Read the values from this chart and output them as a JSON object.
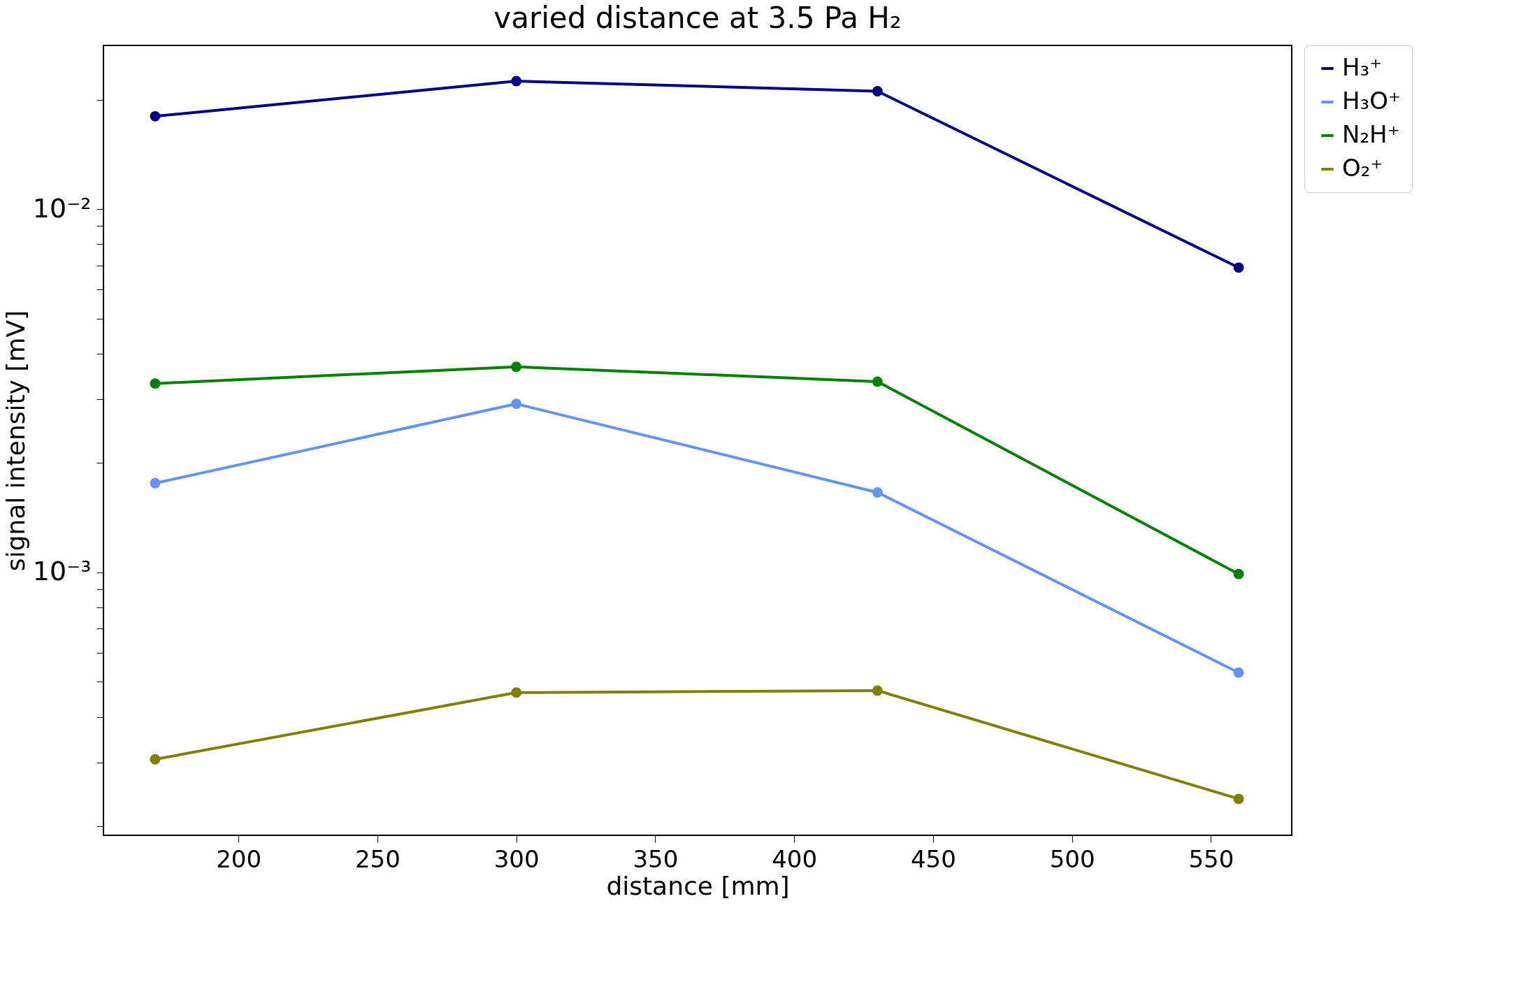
{
  "chart_data": {
    "type": "line",
    "title": "varied distance at 3.5 Pa H₂",
    "xlabel": "distance [mm]",
    "ylabel": "signal intensity [mV]",
    "x": [
      170,
      300,
      430,
      560
    ],
    "series": [
      {
        "name": "H₃⁺",
        "color": "#000080",
        "values": [
          0.018,
          0.0225,
          0.0211,
          0.0069
        ]
      },
      {
        "name": "H₃O⁺",
        "color": "#6495ed",
        "values": [
          0.00176,
          0.00291,
          0.00166,
          0.00053
        ]
      },
      {
        "name": "N₂H⁺",
        "color": "#008000",
        "values": [
          0.00331,
          0.00368,
          0.00335,
          0.00099
        ]
      },
      {
        "name": "O₂⁺",
        "color": "#808000",
        "values": [
          0.000306,
          0.000467,
          0.000473,
          0.000238
        ]
      }
    ],
    "log": "y",
    "xlim": [
      151.4,
      579.1
    ],
    "ylim": [
      0.000189,
      0.0282
    ],
    "xticks": [
      200,
      250,
      300,
      350,
      400,
      450,
      500,
      550
    ],
    "yticks": [
      {
        "value": 0.0002,
        "label": null
      },
      {
        "value": 0.0003,
        "label": null
      },
      {
        "value": 0.0004,
        "label": null
      },
      {
        "value": 0.0005,
        "label": null
      },
      {
        "value": 0.0006,
        "label": null
      },
      {
        "value": 0.0007,
        "label": null
      },
      {
        "value": 0.0008,
        "label": null
      },
      {
        "value": 0.0009,
        "label": null
      },
      {
        "value": 0.001,
        "label": "10⁻³"
      },
      {
        "value": 0.002,
        "label": null
      },
      {
        "value": 0.003,
        "label": null
      },
      {
        "value": 0.004,
        "label": null
      },
      {
        "value": 0.005,
        "label": null
      },
      {
        "value": 0.006,
        "label": null
      },
      {
        "value": 0.007,
        "label": null
      },
      {
        "value": 0.008,
        "label": null
      },
      {
        "value": 0.009,
        "label": null
      },
      {
        "value": 0.01,
        "label": "10⁻²"
      },
      {
        "value": 0.02,
        "label": null
      }
    ],
    "grid": false,
    "legend": "right",
    "marker": "circle",
    "line_style": "solid"
  }
}
